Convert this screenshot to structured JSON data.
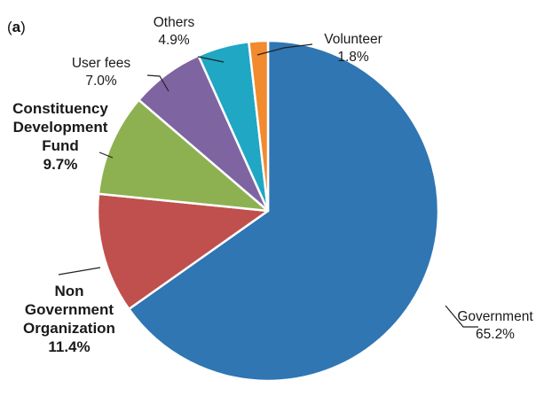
{
  "chart_data": {
    "type": "pie",
    "panel_label": "(a)",
    "start_angle_deg": 0,
    "direction": "clockwise",
    "slice_border_color": "#ffffff",
    "slices": [
      {
        "label": "Government",
        "value": 65.2,
        "value_label": "65.2%",
        "color": "#2F76B3",
        "label_bold": false
      },
      {
        "label": "Non Government Organization",
        "label_lines": [
          "Non",
          "Government",
          "Organization"
        ],
        "value": 11.4,
        "value_label": "11.4%",
        "color": "#C0504D",
        "label_bold": true
      },
      {
        "label": "Constituency Development Fund",
        "label_lines": [
          "Constituency",
          "Development",
          "Fund"
        ],
        "value": 9.7,
        "value_label": "9.7%",
        "color": "#8DB151",
        "label_bold": true
      },
      {
        "label": "User fees",
        "value": 7.0,
        "value_label": "7.0%",
        "color": "#7F64A2",
        "label_bold": false
      },
      {
        "label": "Others",
        "value": 4.9,
        "value_label": "4.9%",
        "color": "#1FA7C3",
        "label_bold": false
      },
      {
        "label": "Volunteer",
        "value": 1.8,
        "value_label": "1.8%",
        "color": "#F28A2E",
        "label_bold": false
      }
    ]
  }
}
